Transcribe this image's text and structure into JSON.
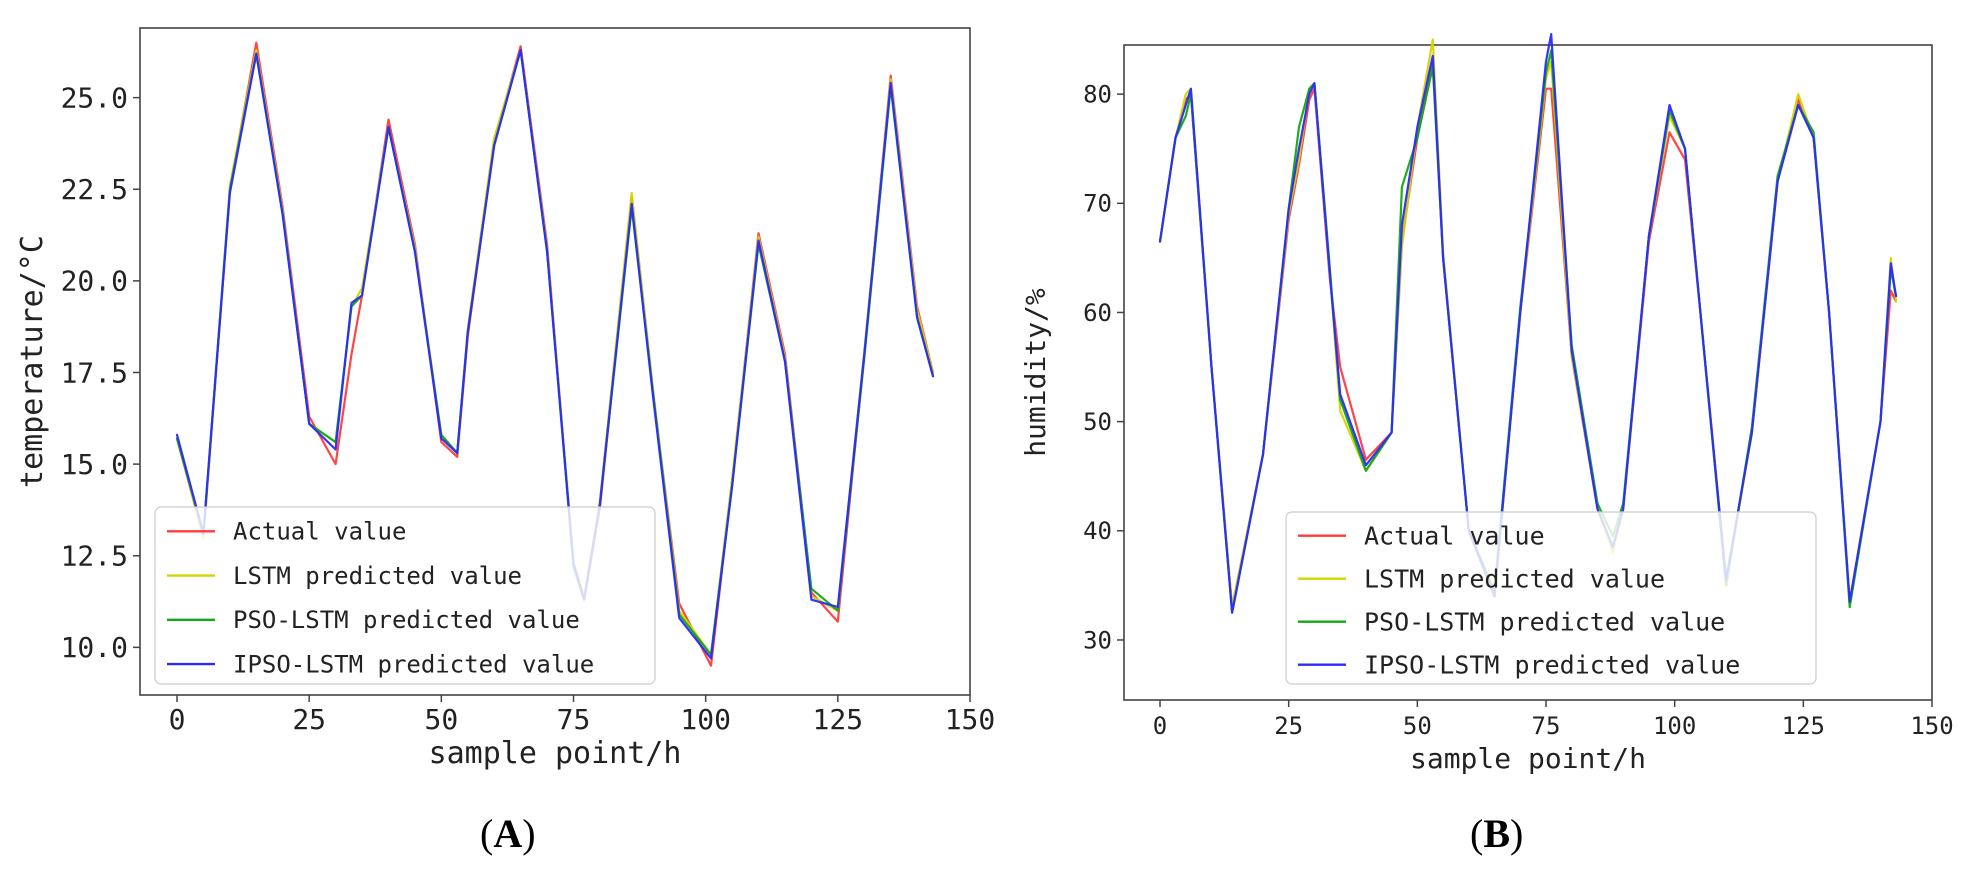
{
  "panel_labels": [
    "A",
    "B"
  ],
  "chart_data": [
    {
      "type": "line",
      "xlabel": "sample point/h",
      "ylabel": "temperature/°C",
      "xlim": [
        -7,
        150
      ],
      "ylim": [
        8.7,
        26.9
      ],
      "xticks": [
        0,
        25,
        50,
        75,
        100,
        125,
        150
      ],
      "xtick_labels": [
        "0",
        "25",
        "50",
        "75",
        "100",
        "125",
        "150"
      ],
      "yticks": [
        10.0,
        12.5,
        15.0,
        17.5,
        20.0,
        22.5,
        25.0
      ],
      "ytick_labels": [
        "10.0",
        "12.5",
        "15.0",
        "17.5",
        "20.0",
        "22.5",
        "25.0"
      ],
      "grid": false,
      "legend_position": "lower-left",
      "legend": [
        "Actual value",
        "LSTM predicted value",
        "PSO-LSTM predicted value",
        "IPSO-LSTM predicted value"
      ],
      "series_colors": [
        "#ff3b3b",
        "#d4d400",
        "#13a813",
        "#2a2aff"
      ],
      "x": [
        0,
        5,
        10,
        15,
        20,
        25,
        30,
        33,
        35,
        40,
        45,
        50,
        53,
        55,
        60,
        65,
        70,
        75,
        77,
        80,
        86,
        90,
        95,
        101,
        105,
        110,
        115,
        120,
        125,
        130,
        135,
        140,
        143
      ],
      "series": [
        {
          "name": "Actual value",
          "values": [
            15.7,
            13.0,
            22.5,
            26.5,
            22.0,
            16.3,
            15.0,
            18.0,
            19.6,
            24.4,
            21.0,
            15.6,
            15.2,
            18.5,
            23.8,
            26.4,
            21.0,
            12.2,
            11.3,
            13.8,
            22.3,
            17.0,
            11.2,
            9.5,
            14.5,
            21.3,
            18.0,
            11.5,
            10.7,
            18.0,
            25.6,
            19.3,
            17.5
          ]
        },
        {
          "name": "LSTM predicted value",
          "values": [
            15.7,
            13.0,
            22.6,
            26.3,
            21.9,
            16.1,
            15.6,
            19.3,
            19.8,
            24.2,
            20.9,
            15.8,
            15.3,
            18.7,
            23.9,
            26.3,
            20.9,
            12.3,
            11.4,
            14.0,
            22.4,
            17.1,
            11.0,
            9.8,
            14.6,
            21.2,
            17.9,
            11.4,
            11.0,
            18.1,
            25.5,
            19.2,
            17.5
          ]
        },
        {
          "name": "PSO-LSTM predicted value",
          "values": [
            15.7,
            13.1,
            22.5,
            26.2,
            21.8,
            16.1,
            15.6,
            19.3,
            19.6,
            24.2,
            20.8,
            15.8,
            15.3,
            18.6,
            23.7,
            26.3,
            20.8,
            12.2,
            11.3,
            13.9,
            22.0,
            17.0,
            10.9,
            9.8,
            14.4,
            21.0,
            17.8,
            11.6,
            11.0,
            17.9,
            25.3,
            19.0,
            17.4
          ]
        },
        {
          "name": "IPSO-LSTM predicted value",
          "values": [
            15.8,
            13.1,
            22.4,
            26.2,
            21.8,
            16.1,
            15.4,
            19.4,
            19.6,
            24.2,
            20.8,
            15.7,
            15.3,
            18.6,
            23.7,
            26.3,
            20.8,
            12.3,
            11.3,
            13.9,
            22.1,
            16.9,
            10.8,
            9.7,
            14.4,
            21.1,
            17.8,
            11.3,
            11.1,
            18.0,
            25.4,
            19.0,
            17.4
          ]
        }
      ]
    },
    {
      "type": "line",
      "xlabel": "sample point/h",
      "ylabel": "humidity/%",
      "xlim": [
        -7,
        150
      ],
      "ylim": [
        24.5,
        84.5
      ],
      "xticks": [
        0,
        25,
        50,
        75,
        100,
        125,
        150
      ],
      "xtick_labels": [
        "0",
        "25",
        "50",
        "75",
        "100",
        "125",
        "150"
      ],
      "yticks": [
        30,
        40,
        50,
        60,
        70,
        80
      ],
      "ytick_labels": [
        "30",
        "40",
        "50",
        "60",
        "70",
        "80"
      ],
      "grid": false,
      "legend_position": "lower-left",
      "legend": [
        "Actual value",
        "LSTM predicted value",
        "PSO-LSTM predicted value",
        "IPSO-LSTM predicted value"
      ],
      "series_colors": [
        "#ff3b3b",
        "#d4d400",
        "#13a813",
        "#2a2aff"
      ],
      "x": [
        0,
        3,
        5,
        6,
        10,
        14,
        20,
        25,
        27,
        29,
        30,
        33,
        35,
        40,
        45,
        47,
        50,
        53,
        55,
        60,
        65,
        70,
        75,
        76,
        80,
        85,
        88,
        90,
        95,
        99,
        102,
        105,
        110,
        115,
        120,
        124,
        127,
        130,
        134,
        140,
        142,
        143
      ],
      "series": [
        {
          "name": "Actual value",
          "values": [
            66.5,
            76.0,
            79.5,
            80.0,
            55.0,
            33.0,
            47.0,
            68.5,
            73.5,
            79.5,
            80.5,
            63.0,
            55.0,
            46.5,
            49.0,
            66.5,
            76.0,
            83.0,
            65.0,
            40.0,
            34.0,
            60.0,
            80.5,
            80.5,
            56.0,
            42.0,
            38.5,
            42.0,
            66.5,
            76.5,
            74.0,
            60.0,
            35.5,
            49.0,
            72.0,
            79.5,
            76.0,
            60.0,
            33.5,
            50.0,
            62.0,
            61.0
          ]
        },
        {
          "name": "LSTM predicted value",
          "values": [
            66.5,
            76.0,
            80.0,
            80.5,
            55.0,
            33.0,
            47.0,
            69.0,
            74.0,
            80.5,
            81.0,
            63.5,
            51.0,
            45.5,
            49.0,
            66.0,
            77.0,
            85.0,
            65.5,
            40.0,
            34.0,
            60.0,
            81.5,
            83.0,
            56.0,
            42.0,
            38.0,
            42.0,
            67.0,
            78.0,
            75.0,
            60.0,
            35.0,
            49.0,
            72.0,
            80.0,
            76.0,
            60.0,
            33.5,
            50.0,
            65.0,
            61.0
          ]
        },
        {
          "name": "PSO-LSTM predicted value",
          "values": [
            66.5,
            76.0,
            78.0,
            80.0,
            55.0,
            32.5,
            47.0,
            69.5,
            77.0,
            80.5,
            81.0,
            64.0,
            52.0,
            45.5,
            49.0,
            71.5,
            76.0,
            82.5,
            65.0,
            40.0,
            34.5,
            60.5,
            82.0,
            84.0,
            57.0,
            42.5,
            39.5,
            42.5,
            67.0,
            78.5,
            75.0,
            60.0,
            35.0,
            49.5,
            72.5,
            79.0,
            76.5,
            60.0,
            33.0,
            50.0,
            64.0,
            61.5
          ]
        },
        {
          "name": "IPSO-LSTM predicted value",
          "values": [
            66.5,
            76.0,
            79.0,
            80.5,
            55.0,
            32.5,
            47.0,
            69.5,
            75.0,
            80.0,
            81.0,
            63.5,
            52.5,
            46.0,
            49.0,
            68.0,
            77.0,
            83.5,
            65.0,
            40.0,
            34.0,
            60.0,
            83.0,
            85.5,
            56.5,
            42.0,
            38.5,
            42.0,
            67.0,
            79.0,
            75.0,
            60.0,
            35.5,
            49.0,
            72.0,
            79.0,
            76.0,
            60.0,
            33.5,
            50.0,
            64.5,
            61.5
          ]
        }
      ]
    }
  ]
}
